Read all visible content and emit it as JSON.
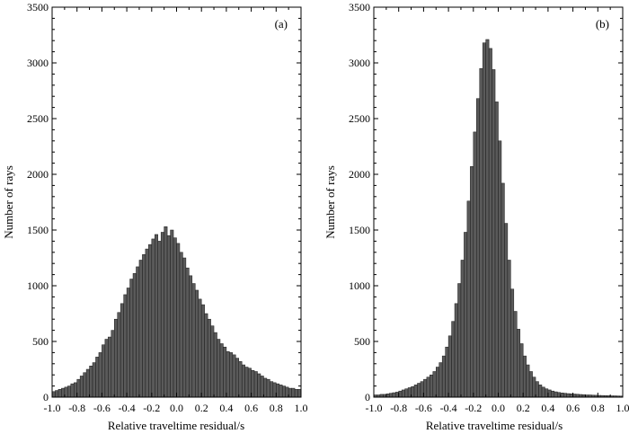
{
  "chart_data": [
    {
      "type": "bar",
      "panel_label": "(a)",
      "xlabel": "Relative traveltime residual/s",
      "ylabel": "Number of rays",
      "xlim": [
        -1.0,
        1.0
      ],
      "ylim": [
        0,
        3500
      ],
      "xticks": [
        "-1.0",
        "-0.8",
        "-0.6",
        "-0.4",
        "-0.2",
        "0.0",
        "0.2",
        "0.4",
        "0.6",
        "0.8",
        "1.0"
      ],
      "yticks": [
        "0",
        "500",
        "1000",
        "1500",
        "2000",
        "2500",
        "3000",
        "3500"
      ],
      "bin_start": -1.0,
      "bin_width": 0.025,
      "values": [
        50,
        60,
        70,
        80,
        90,
        100,
        120,
        130,
        160,
        190,
        220,
        250,
        280,
        310,
        360,
        400,
        470,
        520,
        540,
        600,
        700,
        760,
        840,
        920,
        980,
        1060,
        1110,
        1170,
        1230,
        1280,
        1330,
        1370,
        1420,
        1460,
        1400,
        1480,
        1530,
        1450,
        1500,
        1430,
        1380,
        1300,
        1250,
        1160,
        1090,
        1020,
        960,
        880,
        830,
        750,
        700,
        640,
        580,
        520,
        480,
        450,
        410,
        400,
        380,
        350,
        320,
        290,
        270,
        260,
        240,
        230,
        210,
        190,
        170,
        160,
        140,
        130,
        120,
        110,
        100,
        90,
        80,
        80,
        70,
        70
      ]
    },
    {
      "type": "bar",
      "panel_label": "(b)",
      "xlabel": "Relative traveltime residual/s",
      "ylabel": "Number of rays",
      "xlim": [
        -1.0,
        1.0
      ],
      "ylim": [
        0,
        3500
      ],
      "xticks": [
        "-1.0",
        "-0.8",
        "-0.6",
        "-0.4",
        "-0.2",
        "0.0",
        "0.2",
        "0.4",
        "0.6",
        "0.8",
        "1.0"
      ],
      "yticks": [
        "0",
        "500",
        "1000",
        "1500",
        "2000",
        "2500",
        "3000",
        "3500"
      ],
      "bin_start": -1.0,
      "bin_width": 0.025,
      "values": [
        20,
        20,
        25,
        25,
        30,
        35,
        40,
        45,
        55,
        65,
        75,
        85,
        95,
        110,
        125,
        140,
        160,
        180,
        200,
        230,
        270,
        310,
        370,
        450,
        550,
        680,
        840,
        1020,
        1230,
        1480,
        1760,
        2070,
        2380,
        2680,
        2950,
        3180,
        3210,
        3130,
        2940,
        2650,
        2300,
        1920,
        1560,
        1230,
        970,
        770,
        610,
        480,
        370,
        290,
        230,
        180,
        140,
        110,
        90,
        75,
        65,
        55,
        48,
        42,
        38,
        35,
        32,
        30,
        28,
        26,
        24,
        22,
        20,
        20,
        18,
        17,
        16,
        15,
        14,
        13,
        12,
        12,
        11,
        10
      ]
    }
  ]
}
